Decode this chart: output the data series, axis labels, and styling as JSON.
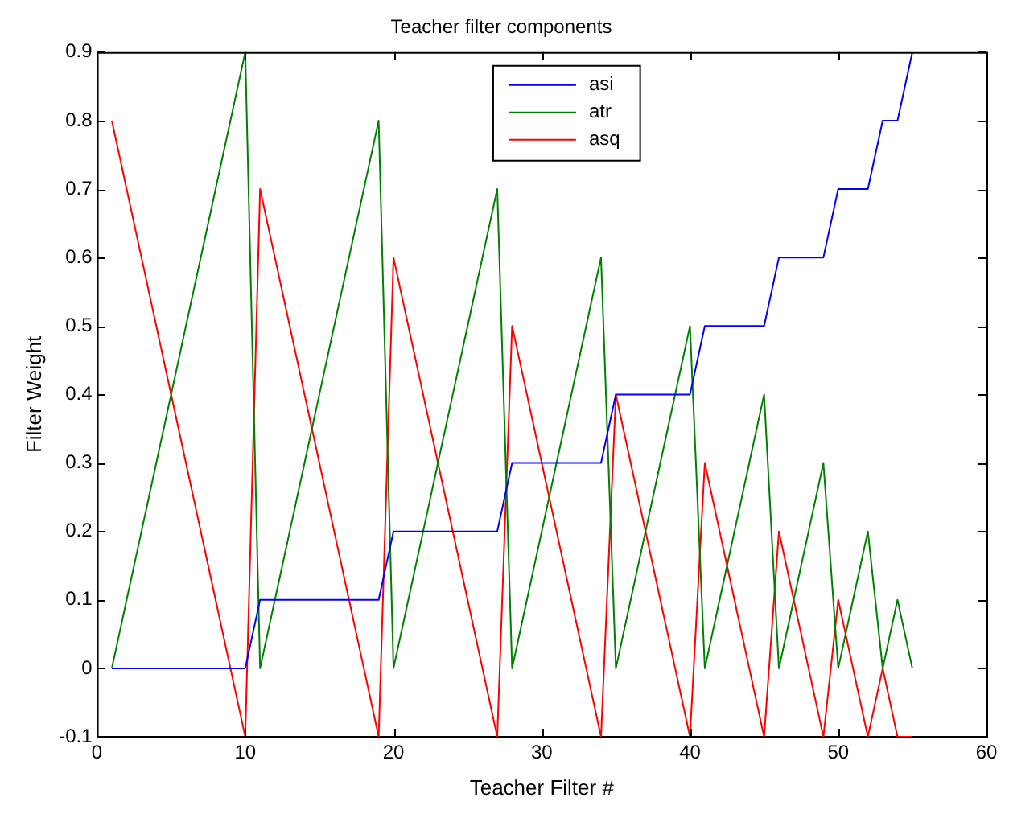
{
  "chart_data": {
    "type": "line",
    "title": "Teacher filter components",
    "xlabel": "Teacher Filter #",
    "ylabel": "Filter Weight",
    "x": [
      1,
      2,
      3,
      4,
      5,
      6,
      7,
      8,
      9,
      10,
      11,
      12,
      13,
      14,
      15,
      16,
      17,
      18,
      19,
      20,
      21,
      22,
      23,
      24,
      25,
      26,
      27,
      28,
      29,
      30,
      31,
      32,
      33,
      34,
      35,
      36,
      37,
      38,
      39,
      40,
      41,
      42,
      43,
      44,
      45,
      46,
      47,
      48,
      49,
      50,
      51,
      52,
      53,
      54,
      55
    ],
    "series": [
      {
        "name": "asi",
        "color": "#0000ff",
        "values": [
          0,
          0,
          0,
          0,
          0,
          0,
          0,
          0,
          0,
          0,
          0.1,
          0.1,
          0.1,
          0.1,
          0.1,
          0.1,
          0.1,
          0.1,
          0.1,
          0.2,
          0.2,
          0.2,
          0.2,
          0.2,
          0.2,
          0.2,
          0.2,
          0.3,
          0.3,
          0.3,
          0.3,
          0.3,
          0.3,
          0.3,
          0.4,
          0.4,
          0.4,
          0.4,
          0.4,
          0.4,
          0.5,
          0.5,
          0.5,
          0.5,
          0.5,
          0.6,
          0.6,
          0.6,
          0.6,
          0.7,
          0.7,
          0.7,
          0.8,
          0.8,
          0.9
        ]
      },
      {
        "name": "atr",
        "color": "#008000",
        "values": [
          0,
          0.1,
          0.2,
          0.3,
          0.4,
          0.5,
          0.6,
          0.7,
          0.8,
          0.9,
          0,
          0.1,
          0.2,
          0.3,
          0.4,
          0.5,
          0.6,
          0.7,
          0.8,
          0,
          0.1,
          0.2,
          0.3,
          0.4,
          0.5,
          0.6,
          0.7,
          0,
          0.1,
          0.2,
          0.3,
          0.4,
          0.5,
          0.6,
          0,
          0.1,
          0.2,
          0.3,
          0.4,
          0.5,
          0,
          0.1,
          0.2,
          0.3,
          0.4,
          0,
          0.1,
          0.2,
          0.3,
          0,
          0.1,
          0.2,
          0,
          0.1,
          0
        ]
      },
      {
        "name": "asq",
        "color": "#ff0000",
        "values": [
          0.8,
          0.7,
          0.6,
          0.5,
          0.4,
          0.3,
          0.2,
          0.1,
          0,
          -0.1,
          0.7,
          0.6,
          0.5,
          0.4,
          0.3,
          0.2,
          0.1,
          0,
          -0.1,
          0.6,
          0.5,
          0.4,
          0.3,
          0.2,
          0.1,
          0,
          -0.1,
          0.5,
          0.4,
          0.3,
          0.2,
          0.1,
          0,
          -0.1,
          0.4,
          0.3,
          0.2,
          0.1,
          0,
          -0.1,
          0.3,
          0.2,
          0.1,
          0,
          -0.1,
          0.2,
          0.1,
          0,
          -0.1,
          0.1,
          0,
          -0.1,
          0,
          -0.1,
          -0.1
        ]
      }
    ],
    "xlim": [
      0,
      60
    ],
    "xticks": [
      0,
      10,
      20,
      30,
      40,
      50,
      60
    ],
    "ylim": [
      -0.1,
      0.9
    ],
    "yticks": [
      -0.1,
      0,
      0.1,
      0.2,
      0.3,
      0.4,
      0.5,
      0.6,
      0.7,
      0.8,
      0.9
    ],
    "grid": false,
    "legend": "top",
    "marker": "none",
    "line_style": "solid"
  }
}
